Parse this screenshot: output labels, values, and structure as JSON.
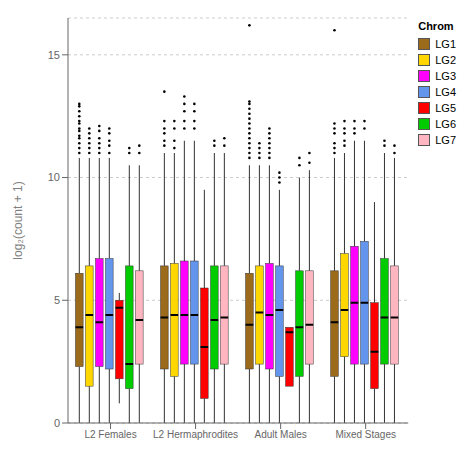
{
  "chart_data": {
    "type": "box",
    "title": "",
    "ylabel": "log₂(count + 1)",
    "legend_title": "Chrom",
    "categories": [
      "L2 Females",
      "L2 Hermaphrodites",
      "Adult Males",
      "Mixed Stages"
    ],
    "ylim": [
      0,
      16.5
    ],
    "yticks": [
      0,
      5,
      10,
      15
    ],
    "grid": true,
    "legend": "right",
    "series": [
      {
        "name": "LG1",
        "color": "#9B6A1A",
        "whislo": [
          0.0,
          0.0,
          0.0,
          0.0
        ],
        "q1": [
          2.3,
          2.2,
          2.2,
          1.9
        ],
        "median": [
          3.9,
          4.3,
          4.0,
          4.1
        ],
        "q3": [
          6.1,
          6.4,
          6.1,
          6.2
        ],
        "whishi": [
          10.8,
          11.0,
          10.5,
          10.8
        ],
        "fliers": [
          [
            11.0,
            11.2,
            11.4,
            11.6,
            11.7,
            11.9,
            12.0,
            12.2,
            12.3,
            12.5,
            12.7,
            12.9,
            13.0
          ],
          [
            11.3,
            11.5,
            11.8,
            12.0,
            12.3,
            13.5
          ],
          [
            10.8,
            11.0,
            11.2,
            11.4,
            11.6,
            11.8,
            12.0,
            12.2,
            12.4,
            12.6,
            12.8,
            13.0,
            13.1,
            16.2
          ],
          [
            11.0,
            11.2,
            11.4,
            11.8,
            12.0,
            12.2,
            16.0
          ]
        ]
      },
      {
        "name": "LG2",
        "color": "#FFD700",
        "whislo": [
          0.0,
          0.0,
          0.0,
          0.0
        ],
        "q1": [
          1.5,
          1.9,
          2.4,
          2.7
        ],
        "median": [
          4.4,
          4.4,
          4.5,
          4.6
        ],
        "q3": [
          6.4,
          6.5,
          6.4,
          6.9
        ],
        "whishi": [
          10.8,
          11.0,
          10.5,
          11.0
        ],
        "fliers": [
          [
            11.0,
            11.2,
            11.4,
            11.6,
            11.8,
            12.0
          ],
          [
            11.2,
            11.5,
            12.0,
            12.3
          ],
          [
            10.8,
            11.0,
            11.2,
            11.4
          ],
          [
            11.3,
            11.5,
            11.8,
            12.0,
            12.3
          ]
        ]
      },
      {
        "name": "LG3",
        "color": "#FF00FF",
        "whislo": [
          0.0,
          0.0,
          0.0,
          0.0
        ],
        "q1": [
          2.3,
          2.4,
          2.2,
          2.4
        ],
        "median": [
          4.1,
          4.4,
          4.4,
          4.9
        ],
        "q3": [
          6.7,
          6.6,
          6.5,
          7.2
        ],
        "whishi": [
          10.8,
          11.5,
          10.5,
          11.5
        ],
        "fliers": [
          [
            11.0,
            11.2,
            11.4,
            11.6,
            11.9,
            12.1
          ],
          [
            12.0,
            12.3,
            12.7,
            13.0,
            13.3
          ],
          [
            10.8,
            11.0,
            11.2,
            11.4,
            11.6,
            11.8,
            12.0
          ],
          [
            11.8,
            12.0,
            12.3
          ]
        ]
      },
      {
        "name": "LG4",
        "color": "#6495ED",
        "whislo": [
          0.0,
          0.0,
          0.0,
          0.0
        ],
        "q1": [
          2.2,
          2.4,
          1.9,
          2.4
        ],
        "median": [
          4.4,
          4.4,
          4.6,
          4.9
        ],
        "q3": [
          6.7,
          6.6,
          6.4,
          7.4
        ],
        "whishi": [
          10.8,
          11.5,
          9.5,
          11.5
        ],
        "fliers": [
          [
            11.0,
            11.3,
            11.5,
            11.8,
            12.0
          ],
          [
            12.0,
            12.3,
            12.7,
            13.0
          ],
          [
            9.8,
            10.0,
            10.2
          ],
          [
            12.0,
            12.3
          ]
        ]
      },
      {
        "name": "LG5",
        "color": "#FF0000",
        "whislo": [
          0.8,
          0.0,
          1.5,
          0.0
        ],
        "q1": [
          1.8,
          1.0,
          1.5,
          1.4
        ],
        "median": [
          4.7,
          3.1,
          3.7,
          2.9
        ],
        "q3": [
          5.0,
          5.5,
          3.9,
          4.9
        ],
        "whishi": [
          5.3,
          9.5,
          3.9,
          9.0
        ],
        "fliers": [
          [],
          [],
          [],
          []
        ]
      },
      {
        "name": "LG6",
        "color": "#00CC00",
        "whislo": [
          0.0,
          0.0,
          0.0,
          0.0
        ],
        "q1": [
          1.4,
          2.2,
          1.9,
          2.4
        ],
        "median": [
          2.4,
          4.2,
          3.9,
          4.3
        ],
        "q3": [
          6.4,
          6.4,
          6.2,
          6.7
        ],
        "whishi": [
          10.5,
          11.0,
          10.0,
          11.0
        ],
        "fliers": [
          [
            11.0,
            11.2
          ],
          [
            11.3,
            11.5
          ],
          [
            10.5,
            10.8
          ],
          [
            11.3,
            11.5
          ]
        ]
      },
      {
        "name": "LG7",
        "color": "#FFB6C1",
        "whislo": [
          0.0,
          0.0,
          0.0,
          0.0
        ],
        "q1": [
          2.4,
          2.4,
          2.4,
          2.4
        ],
        "median": [
          4.2,
          4.3,
          4.0,
          4.3
        ],
        "q3": [
          6.2,
          6.4,
          6.2,
          6.4
        ],
        "whishi": [
          10.5,
          11.0,
          10.3,
          10.8
        ],
        "fliers": [
          [
            11.0,
            11.3
          ],
          [
            11.3,
            11.6
          ],
          [
            10.6,
            11.0
          ],
          [
            11.0,
            11.3
          ]
        ]
      }
    ]
  }
}
